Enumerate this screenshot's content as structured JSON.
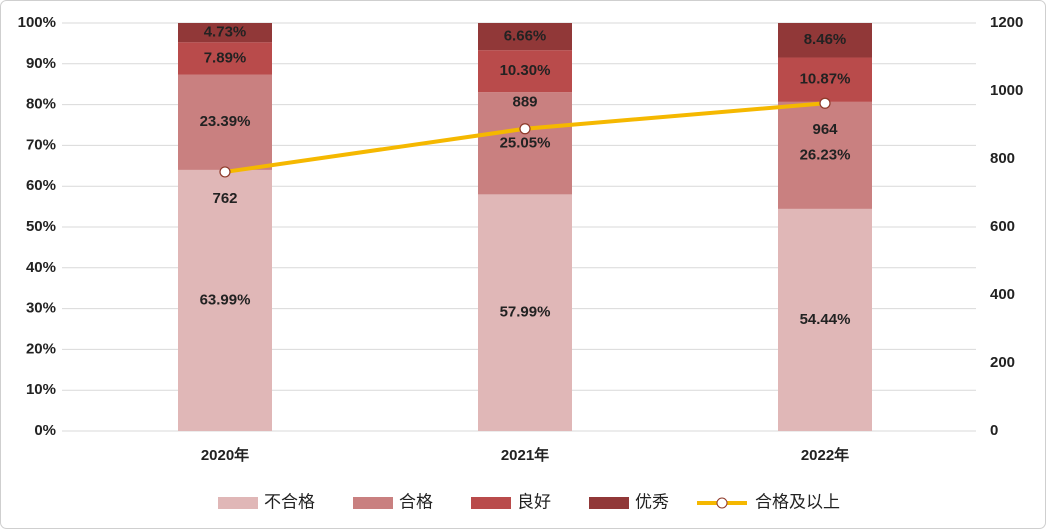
{
  "chart_data": {
    "type": "stacked-bar-line",
    "categories": [
      "2020年",
      "2021年",
      "2022年"
    ],
    "series": [
      {
        "name": "不合格",
        "color": "#e0b7b7",
        "values": [
          63.99,
          57.99,
          54.44
        ],
        "value_labels": [
          "63.99%",
          "57.99%",
          "54.44%"
        ]
      },
      {
        "name": "合格",
        "color": "#c98080",
        "values": [
          23.39,
          25.05,
          26.23
        ],
        "value_labels": [
          "23.39%",
          "25.05%",
          "26.23%"
        ]
      },
      {
        "name": "良好",
        "color": "#b94b4b",
        "values": [
          7.89,
          10.3,
          10.87
        ],
        "value_labels": [
          "7.89%",
          "10.30%",
          "10.87%"
        ]
      },
      {
        "name": "优秀",
        "color": "#913838",
        "values": [
          4.73,
          6.66,
          8.46
        ],
        "value_labels": [
          "4.73%",
          "6.66%",
          "8.46%"
        ]
      },
      {
        "name": "合格及以上",
        "color": "#f5b800",
        "axis": "y2",
        "type": "line",
        "values": [
          762,
          889,
          964
        ]
      }
    ],
    "ylim": [
      0,
      100
    ],
    "yticks": [
      {
        "value": 0,
        "label": "0%"
      },
      {
        "value": 10,
        "label": "10%"
      },
      {
        "value": 20,
        "label": "20%"
      },
      {
        "value": 30,
        "label": "30%"
      },
      {
        "value": 40,
        "label": "40%"
      },
      {
        "value": 50,
        "label": "50%"
      },
      {
        "value": 60,
        "label": "60%"
      },
      {
        "value": 70,
        "label": "70%"
      },
      {
        "value": 80,
        "label": "80%"
      },
      {
        "value": 90,
        "label": "90%"
      },
      {
        "value": 100,
        "label": "100%"
      }
    ],
    "y2lim": [
      0,
      1200
    ],
    "y2ticks": [
      0,
      200,
      400,
      600,
      800,
      1000,
      1200
    ],
    "grid": true,
    "legend": "bottom"
  }
}
